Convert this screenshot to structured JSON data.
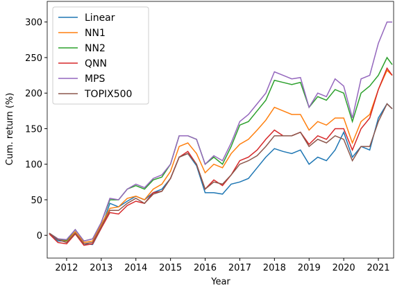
{
  "chart_data": {
    "type": "line",
    "xlabel": "Year",
    "ylabel": "Cum. return (%)",
    "x": [
      2011.5,
      2011.75,
      2012.0,
      2012.25,
      2012.5,
      2012.75,
      2013.0,
      2013.25,
      2013.5,
      2013.75,
      2014.0,
      2014.25,
      2014.5,
      2014.75,
      2015.0,
      2015.25,
      2015.5,
      2015.75,
      2016.0,
      2016.25,
      2016.5,
      2016.75,
      2017.0,
      2017.25,
      2017.5,
      2017.75,
      2018.0,
      2018.25,
      2018.5,
      2018.75,
      2019.0,
      2019.25,
      2019.5,
      2019.75,
      2020.0,
      2020.25,
      2020.5,
      2020.75,
      2021.0,
      2021.25,
      2021.4
    ],
    "series": [
      {
        "name": "Linear",
        "color": "#1f77b4",
        "values": [
          3,
          -8,
          -8,
          5,
          -12,
          -13,
          10,
          45,
          40,
          48,
          55,
          50,
          60,
          65,
          80,
          110,
          115,
          98,
          60,
          60,
          58,
          72,
          75,
          80,
          95,
          110,
          122,
          118,
          115,
          120,
          100,
          110,
          105,
          120,
          145,
          110,
          125,
          120,
          165,
          185,
          178
        ]
      },
      {
        "name": "NN1",
        "color": "#ff7f0e",
        "values": [
          3,
          -5,
          -8,
          5,
          -10,
          -8,
          15,
          38,
          40,
          52,
          55,
          50,
          65,
          72,
          90,
          125,
          130,
          115,
          88,
          100,
          95,
          115,
          128,
          135,
          148,
          162,
          180,
          175,
          170,
          170,
          148,
          160,
          155,
          165,
          165,
          130,
          160,
          170,
          205,
          232,
          225
        ]
      },
      {
        "name": "NN2",
        "color": "#2ca02c",
        "values": [
          3,
          -5,
          -7,
          8,
          -8,
          -5,
          18,
          50,
          50,
          65,
          70,
          65,
          78,
          82,
          100,
          140,
          140,
          135,
          100,
          110,
          100,
          125,
          155,
          160,
          175,
          190,
          218,
          215,
          212,
          215,
          180,
          195,
          190,
          205,
          200,
          160,
          200,
          210,
          225,
          250,
          240
        ]
      },
      {
        "name": "QNN",
        "color": "#d62728",
        "values": [
          2,
          -10,
          -12,
          2,
          -14,
          -12,
          10,
          32,
          30,
          42,
          48,
          45,
          60,
          62,
          80,
          110,
          118,
          100,
          65,
          78,
          70,
          85,
          105,
          110,
          120,
          135,
          148,
          140,
          140,
          145,
          128,
          140,
          135,
          150,
          150,
          120,
          150,
          165,
          205,
          235,
          225
        ]
      },
      {
        "name": "MPS",
        "color": "#9467bd",
        "values": [
          3,
          -5,
          -6,
          8,
          -8,
          -5,
          18,
          52,
          50,
          65,
          72,
          67,
          80,
          85,
          100,
          140,
          140,
          135,
          100,
          112,
          105,
          130,
          160,
          170,
          185,
          200,
          230,
          225,
          220,
          222,
          180,
          200,
          195,
          220,
          210,
          165,
          220,
          225,
          270,
          300,
          300
        ]
      },
      {
        "name": "TOPIX500",
        "color": "#8c564b",
        "values": [
          3,
          -6,
          -10,
          3,
          -12,
          -10,
          12,
          35,
          35,
          45,
          52,
          45,
          58,
          62,
          80,
          110,
          115,
          100,
          65,
          75,
          72,
          85,
          100,
          105,
          112,
          125,
          140,
          140,
          140,
          145,
          125,
          135,
          130,
          140,
          135,
          105,
          125,
          125,
          160,
          185,
          178
        ]
      }
    ],
    "xlim": [
      2011.44,
      2021.44
    ],
    "xticks": [
      2012,
      2013,
      2014,
      2015,
      2016,
      2017,
      2018,
      2019,
      2020,
      2021
    ],
    "ylim": [
      -32,
      329
    ],
    "yticks": [
      0,
      50,
      100,
      150,
      200,
      250,
      300
    ],
    "legend": "upper left"
  }
}
